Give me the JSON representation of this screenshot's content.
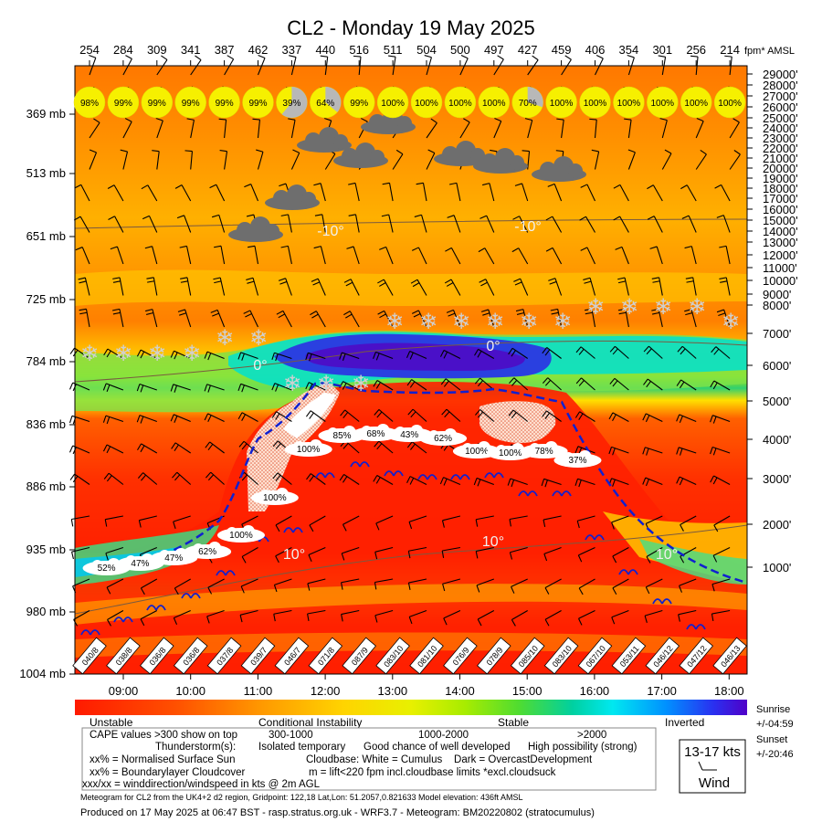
{
  "chart_data": {
    "type": "heatmap",
    "title": "CL2 - Monday 19 May 2025",
    "top_axis_label": "fpm* AMSL",
    "cape_values": [
      "254",
      "284",
      "309",
      "341",
      "387",
      "462",
      "337",
      "440",
      "516",
      "511",
      "504",
      "500",
      "497",
      "427",
      "459",
      "406",
      "354",
      "301",
      "256",
      "214"
    ],
    "x_ticks": [
      "09:00",
      "10:00",
      "11:00",
      "12:00",
      "13:00",
      "14:00",
      "15:00",
      "16:00",
      "17:00",
      "18:00"
    ],
    "pressure_ticks": [
      "369 mb",
      "513 mb",
      "651 mb",
      "725 mb",
      "784 mb",
      "836 mb",
      "886 mb",
      "935 mb",
      "980 mb",
      "1004 mb"
    ],
    "altitude_ticks": [
      "29000'",
      "28000'",
      "27000'",
      "26000'",
      "25000'",
      "24000'",
      "23000'",
      "22000'",
      "21000'",
      "20000'",
      "19000'",
      "18000'",
      "17000'",
      "16000'",
      "15000'",
      "14000'",
      "13000'",
      "12000'",
      "11000'",
      "10000'",
      "9000'",
      "8000'",
      "7000'",
      "6000'",
      "5000'",
      "4000'",
      "3000'",
      "2000'",
      "1000'"
    ],
    "sun_percent": [
      "98%",
      "99%",
      "99%",
      "99%",
      "99%",
      "99%",
      "39%",
      "64%",
      "99%",
      "100%",
      "100%",
      "100%",
      "100%",
      "70%",
      "100%",
      "100%",
      "100%",
      "100%",
      "100%",
      "100%"
    ],
    "surface_wind": [
      "040/8",
      "038/8",
      "036/8",
      "036/8",
      "037/8",
      "039/7",
      "046/7",
      "071/8",
      "087/9",
      "083/10",
      "081/10",
      "076/9",
      "078/9",
      "085/10",
      "083/10",
      "067/10",
      "053/11",
      "046/12",
      "047/12",
      "046/13"
    ],
    "boundary_cloudcover": [
      {
        "t": 8.75,
        "label": "52%"
      },
      {
        "t": 9.25,
        "label": "47%"
      },
      {
        "t": 9.75,
        "label": "47%"
      },
      {
        "t": 10.25,
        "label": "62%"
      },
      {
        "t": 10.75,
        "label": "100%"
      },
      {
        "t": 11.25,
        "label": "100%"
      },
      {
        "t": 11.75,
        "label": "100%"
      },
      {
        "t": 12.25,
        "label": "85%"
      },
      {
        "t": 12.75,
        "label": "68%"
      },
      {
        "t": 13.25,
        "label": "43%"
      },
      {
        "t": 13.75,
        "label": "62%"
      },
      {
        "t": 14.25,
        "label": "100%"
      },
      {
        "t": 14.75,
        "label": "100%"
      },
      {
        "t": 15.25,
        "label": "78%"
      },
      {
        "t": 15.75,
        "label": "37%"
      }
    ],
    "isotherms": [
      "-10°",
      "-10°",
      "0°",
      "0°",
      "10°",
      "10°",
      "10°"
    ],
    "colorbar_labels": [
      "Unstable",
      "Conditional Instability",
      "Stable",
      "Inverted"
    ],
    "colorbar_colors": [
      "#ff1a00",
      "#ff4a00",
      "#ff8a00",
      "#ffc000",
      "#f6ea00",
      "#c8f000",
      "#7fe000",
      "#30d060",
      "#00d0b0",
      "#00e8f0",
      "#00a0ff",
      "#2040ff",
      "#5000d0"
    ],
    "sun_times": [
      "Sunrise",
      "+/-04:59",
      "Sunset",
      "+/-20:46"
    ],
    "wind_legend": {
      "speed": "13-17 kts",
      "label": "Wind"
    }
  },
  "legend": {
    "cape_line": "CAPE values >300 show on top",
    "cape_ranges": [
      "300-1000",
      "1000-2000",
      ">2000"
    ],
    "thunder_label": "Thunderstorm(s):",
    "thunder_levels": [
      "Isolated temporary",
      "Good chance of well developed",
      "High possibility (strong)"
    ],
    "sun_line": "xx% = Normalised Surface Sun",
    "cloudbase_line": "Cloudbase: White = Cumulus    Dark = OvercastDevelopment",
    "blcc_line": "xx% = Boundarylayer Cloudcover",
    "lift_line": "m = lift<220 fpm incl.cloudbase limits *excl.cloudsuck",
    "wind_line": "xxx/xx = winddirection/windspeed in kts @ 2m AGL"
  },
  "footer": {
    "info": "Meteogram for CL2 from the UK4+2 d2 region, Gridpoint: 122,18 Lat,Lon: 51.2057,0.821633 Model elevation: 436ft AMSL",
    "produced": "Produced on 17 May 2025 at 06:47 BST - rasp.stratus.org.uk - WRF3.7 - Meteogram: BM20220802 (stratocumulus)"
  }
}
